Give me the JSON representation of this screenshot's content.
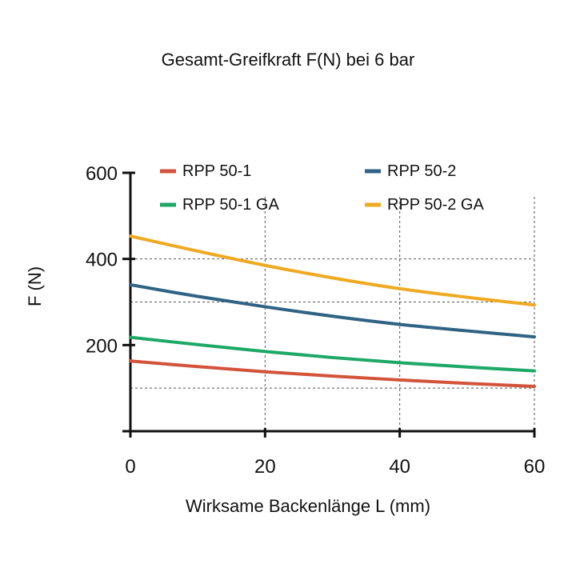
{
  "chart_data": {
    "type": "line",
    "title": "Gesamt-Greifkraft F(N) bei 6 bar",
    "xlabel": "Wirksame Backenlänge L (mm)",
    "ylabel": "F (N)",
    "xlim": [
      0,
      60
    ],
    "ylim": [
      0,
      600
    ],
    "xticks": [
      0,
      20,
      40,
      60
    ],
    "yticks": [
      200,
      400,
      600
    ],
    "grid": "dashed",
    "gridlines_y": [
      100,
      300,
      400
    ],
    "gridlines_x": [
      20,
      40,
      60
    ],
    "legend_position": "top",
    "x": [
      0,
      10,
      20,
      30,
      40,
      50,
      60
    ],
    "series": [
      {
        "name": "RPP 50-1",
        "color": "#d2533a",
        "values": [
          163,
          150,
          138,
          128,
          119,
          111,
          104
        ]
      },
      {
        "name": "RPP 50-2",
        "color": "#2f6384",
        "values": [
          340,
          313,
          289,
          267,
          248,
          233,
          219
        ]
      },
      {
        "name": "RPP 50-1 GA",
        "color": "#1da866",
        "values": [
          218,
          201,
          185,
          171,
          159,
          149,
          140
        ]
      },
      {
        "name": "RPP 50-2 GA",
        "color": "#eeaa22",
        "values": [
          453,
          418,
          385,
          356,
          331,
          311,
          293
        ]
      }
    ]
  }
}
